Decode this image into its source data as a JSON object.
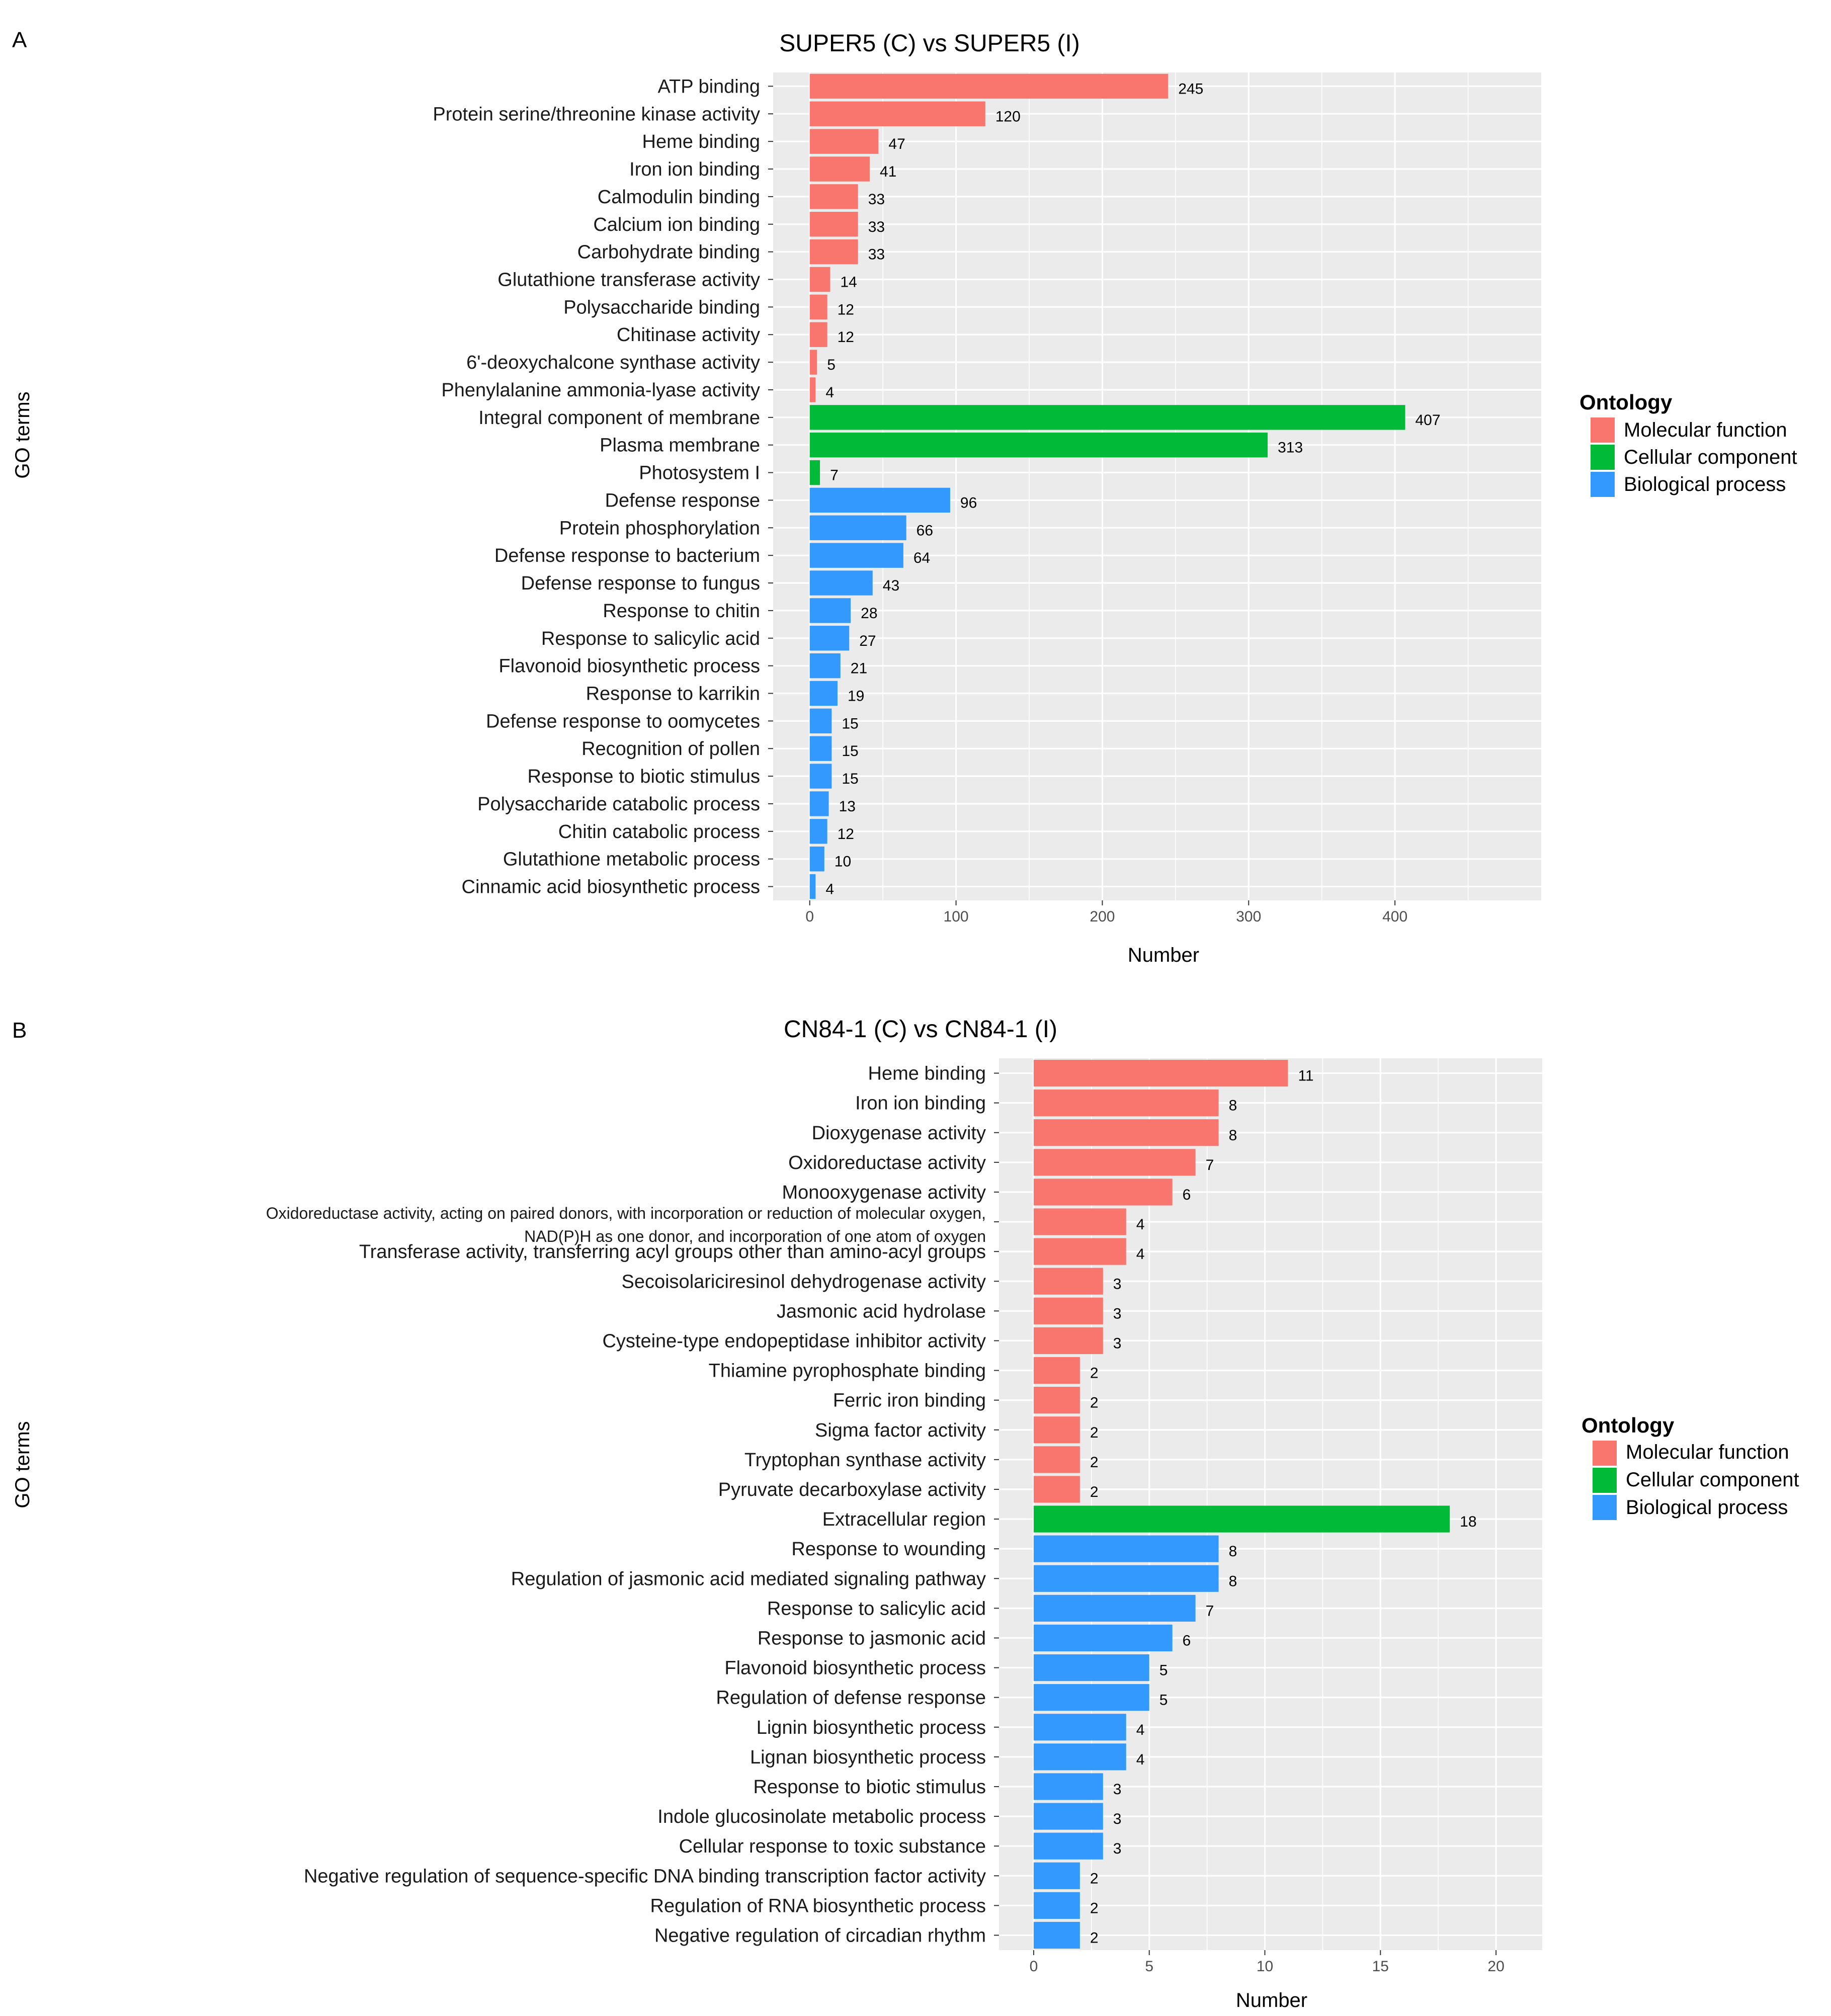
{
  "panel_a": {
    "letter": "A",
    "y_title": "GO terms",
    "legend": {
      "title": "Ontology",
      "items": [
        {
          "label": "Molecular function",
          "color": "#F8766D"
        },
        {
          "label": "Cellular component",
          "color": "#00BA38"
        },
        {
          "label": "Biological process",
          "color": "#3399FF"
        }
      ]
    }
  },
  "panel_b": {
    "letter": "B",
    "y_title": "GO terms",
    "legend": {
      "title": "Ontology",
      "items": [
        {
          "label": "Molecular function",
          "color": "#F8766D"
        },
        {
          "label": "Cellular component",
          "color": "#00BA38"
        },
        {
          "label": "Biological process",
          "color": "#3399FF"
        }
      ]
    }
  },
  "chart_data": [
    {
      "type": "bar",
      "orientation": "horizontal",
      "title": "SUPER5 (C) vs SUPER5 (I)",
      "xlabel": "Number",
      "ylabel": "GO terms",
      "xlim": [
        -25,
        500
      ],
      "xticks": [
        0,
        100,
        200,
        300,
        400
      ],
      "xtick_labels": [
        "0",
        "100",
        "200",
        "300",
        "400"
      ],
      "bars": [
        {
          "label": "ATP binding",
          "value": 245,
          "group": "Molecular function"
        },
        {
          "label": "Protein serine/threonine kinase activity",
          "value": 120,
          "group": "Molecular function"
        },
        {
          "label": "Heme binding",
          "value": 47,
          "group": "Molecular function"
        },
        {
          "label": "Iron ion binding",
          "value": 41,
          "group": "Molecular function"
        },
        {
          "label": "Calmodulin binding",
          "value": 33,
          "group": "Molecular function"
        },
        {
          "label": "Calcium ion binding",
          "value": 33,
          "group": "Molecular function"
        },
        {
          "label": "Carbohydrate binding",
          "value": 33,
          "group": "Molecular function"
        },
        {
          "label": "Glutathione transferase activity",
          "value": 14,
          "group": "Molecular function"
        },
        {
          "label": "Polysaccharide binding",
          "value": 12,
          "group": "Molecular function"
        },
        {
          "label": "Chitinase activity",
          "value": 12,
          "group": "Molecular function"
        },
        {
          "label": "6'-deoxychalcone synthase activity",
          "value": 5,
          "group": "Molecular function"
        },
        {
          "label": "Phenylalanine ammonia-lyase activity",
          "value": 4,
          "group": "Molecular function"
        },
        {
          "label": "Integral component of membrane",
          "value": 407,
          "group": "Cellular component"
        },
        {
          "label": "Plasma membrane",
          "value": 313,
          "group": "Cellular component"
        },
        {
          "label": "Photosystem I",
          "value": 7,
          "group": "Cellular component"
        },
        {
          "label": "Defense response",
          "value": 96,
          "group": "Biological process"
        },
        {
          "label": "Protein phosphorylation",
          "value": 66,
          "group": "Biological process"
        },
        {
          "label": "Defense response to bacterium",
          "value": 64,
          "group": "Biological process"
        },
        {
          "label": "Defense response to fungus",
          "value": 43,
          "group": "Biological process"
        },
        {
          "label": "Response to chitin",
          "value": 28,
          "group": "Biological process"
        },
        {
          "label": "Response to salicylic acid",
          "value": 27,
          "group": "Biological process"
        },
        {
          "label": "Flavonoid biosynthetic process",
          "value": 21,
          "group": "Biological process"
        },
        {
          "label": "Response to karrikin",
          "value": 19,
          "group": "Biological process"
        },
        {
          "label": "Defense response to oomycetes",
          "value": 15,
          "group": "Biological process"
        },
        {
          "label": "Recognition of pollen",
          "value": 15,
          "group": "Biological process"
        },
        {
          "label": "Response to biotic stimulus",
          "value": 15,
          "group": "Biological process"
        },
        {
          "label": "Polysaccharide catabolic process",
          "value": 13,
          "group": "Biological process"
        },
        {
          "label": "Chitin catabolic process",
          "value": 12,
          "group": "Biological process"
        },
        {
          "label": "Glutathione metabolic process",
          "value": 10,
          "group": "Biological process"
        },
        {
          "label": "Cinnamic acid biosynthetic process",
          "value": 4,
          "group": "Biological process"
        }
      ]
    },
    {
      "type": "bar",
      "orientation": "horizontal",
      "title": "CN84-1 (C) vs CN84-1 (I)",
      "xlabel": "Number",
      "ylabel": "GO terms",
      "xlim": [
        -1.5,
        22
      ],
      "xticks": [
        0,
        5,
        10,
        15,
        20
      ],
      "xtick_labels": [
        "0",
        "5",
        "10",
        "15",
        "20"
      ],
      "bars": [
        {
          "label": "Heme binding",
          "value": 11,
          "group": "Molecular function"
        },
        {
          "label": "Iron ion binding",
          "value": 8,
          "group": "Molecular function"
        },
        {
          "label": "Dioxygenase activity",
          "value": 8,
          "group": "Molecular function"
        },
        {
          "label": "Oxidoreductase activity",
          "value": 7,
          "group": "Molecular function"
        },
        {
          "label": "Monooxygenase activity",
          "value": 6,
          "group": "Molecular function"
        },
        {
          "label": "Oxidoreductase activity, acting on paired donors, with incorporation or reduction of molecular oxygen,",
          "label2": "NAD(P)H as one donor, and incorporation of one atom of oxygen",
          "value": 4,
          "group": "Molecular function"
        },
        {
          "label": "Transferase activity, transferring acyl groups other than amino-acyl groups",
          "value": 4,
          "group": "Molecular function"
        },
        {
          "label": "Secoisolariciresinol dehydrogenase activity",
          "value": 3,
          "group": "Molecular function"
        },
        {
          "label": "Jasmonic acid hydrolase",
          "value": 3,
          "group": "Molecular function"
        },
        {
          "label": "Cysteine-type endopeptidase inhibitor activity",
          "value": 3,
          "group": "Molecular function"
        },
        {
          "label": "Thiamine pyrophosphate binding",
          "value": 2,
          "group": "Molecular function"
        },
        {
          "label": "Ferric iron binding",
          "value": 2,
          "group": "Molecular function"
        },
        {
          "label": "Sigma factor activity",
          "value": 2,
          "group": "Molecular function"
        },
        {
          "label": "Tryptophan synthase activity",
          "value": 2,
          "group": "Molecular function"
        },
        {
          "label": "Pyruvate decarboxylase activity",
          "value": 2,
          "group": "Molecular function"
        },
        {
          "label": "Extracellular region",
          "value": 18,
          "group": "Cellular component"
        },
        {
          "label": "Response to wounding",
          "value": 8,
          "group": "Biological process"
        },
        {
          "label": "Regulation of jasmonic acid mediated signaling pathway",
          "value": 8,
          "group": "Biological process"
        },
        {
          "label": "Response to salicylic acid",
          "value": 7,
          "group": "Biological process"
        },
        {
          "label": "Response to jasmonic acid",
          "value": 6,
          "group": "Biological process"
        },
        {
          "label": "Flavonoid biosynthetic process",
          "value": 5,
          "group": "Biological process"
        },
        {
          "label": "Regulation of defense response",
          "value": 5,
          "group": "Biological process"
        },
        {
          "label": "Lignin biosynthetic process",
          "value": 4,
          "group": "Biological process"
        },
        {
          "label": "Lignan biosynthetic process",
          "value": 4,
          "group": "Biological process"
        },
        {
          "label": "Response to biotic stimulus",
          "value": 3,
          "group": "Biological process"
        },
        {
          "label": "Indole glucosinolate metabolic process",
          "value": 3,
          "group": "Biological process"
        },
        {
          "label": "Cellular response to toxic substance",
          "value": 3,
          "group": "Biological process"
        },
        {
          "label": "Negative regulation of sequence-specific DNA binding transcription factor activity",
          "value": 2,
          "group": "Biological process"
        },
        {
          "label": "Regulation of RNA biosynthetic process",
          "value": 2,
          "group": "Biological process"
        },
        {
          "label": "Negative regulation of circadian rhythm",
          "value": 2,
          "group": "Biological process"
        }
      ]
    }
  ]
}
